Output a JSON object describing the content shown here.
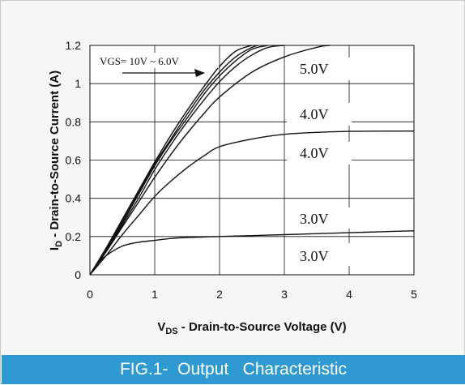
{
  "caption": "FIG.1-  Output   Characteristic",
  "colors": {
    "caption_bg": "#2f9ad2",
    "plot_bg": "#ffffff",
    "curve": "#111111",
    "grid": "#111111"
  },
  "chart_data": {
    "type": "line",
    "title": "",
    "xlabel_main": "V",
    "xlabel_sub": "DS",
    "xlabel_rest": " - Drain-to-Source Voltage (V)",
    "ylabel_main": "I",
    "ylabel_sub": "D",
    "ylabel_rest": " - Drain-to-Source Current (A)",
    "xlim": [
      0,
      5
    ],
    "ylim": [
      0,
      1.2
    ],
    "xticks": [
      "0",
      "1",
      "2",
      "3",
      "4",
      "5"
    ],
    "yticks": [
      "0",
      "0.2",
      "0.4",
      "0.6",
      "0.8",
      "1",
      "1.2"
    ],
    "grid": true,
    "annotations": {
      "vgs_range": "VGS= 10V ~ 6.0V",
      "labels": [
        "5.0V",
        "4.0V",
        "4.0V",
        "3.0V",
        "3.0V"
      ]
    },
    "series": [
      {
        "x": [
          0,
          0.25,
          0.5,
          0.75,
          1,
          1.25,
          1.5,
          1.75,
          2,
          2.25,
          2.5
        ],
        "y": [
          0,
          0.14,
          0.29,
          0.44,
          0.59,
          0.73,
          0.86,
          0.98,
          1.09,
          1.17,
          1.2
        ]
      },
      {
        "x": [
          0,
          0.25,
          0.5,
          0.75,
          1,
          1.25,
          1.5,
          1.75,
          2,
          2.25,
          2.5,
          2.6
        ],
        "y": [
          0,
          0.135,
          0.28,
          0.43,
          0.58,
          0.71,
          0.84,
          0.96,
          1.06,
          1.14,
          1.19,
          1.2
        ]
      },
      {
        "x": [
          0,
          0.25,
          0.5,
          0.75,
          1,
          1.25,
          1.5,
          1.75,
          2,
          2.25,
          2.5,
          2.75
        ],
        "y": [
          0,
          0.13,
          0.27,
          0.42,
          0.57,
          0.7,
          0.82,
          0.94,
          1.04,
          1.12,
          1.18,
          1.2
        ]
      },
      {
        "x": [
          0,
          0.25,
          0.5,
          0.75,
          1,
          1.25,
          1.5,
          1.75,
          2,
          2.25,
          2.5,
          2.75,
          3.0
        ],
        "y": [
          0,
          0.125,
          0.26,
          0.4,
          0.55,
          0.68,
          0.8,
          0.91,
          1.01,
          1.09,
          1.15,
          1.19,
          1.2
        ]
      },
      {
        "x": [
          0,
          0.25,
          0.5,
          0.75,
          1,
          1.25,
          1.5,
          1.75,
          2,
          2.5,
          3,
          3.5,
          3.7
        ],
        "y": [
          0,
          0.12,
          0.25,
          0.38,
          0.51,
          0.63,
          0.74,
          0.84,
          0.93,
          1.06,
          1.14,
          1.19,
          1.2
        ]
      },
      {
        "x": [
          0,
          0.25,
          0.5,
          0.75,
          1,
          1.25,
          1.5,
          1.75,
          2,
          2.5,
          3,
          3.5,
          4,
          5
        ],
        "y": [
          0,
          0.1,
          0.21,
          0.31,
          0.41,
          0.49,
          0.56,
          0.62,
          0.67,
          0.71,
          0.735,
          0.745,
          0.75,
          0.752
        ]
      },
      {
        "x": [
          0,
          0.1,
          0.25,
          0.5,
          0.75,
          1,
          1.25,
          1.5,
          2,
          2.5,
          3,
          3.5,
          4,
          4.5,
          5
        ],
        "y": [
          0,
          0.05,
          0.1,
          0.15,
          0.17,
          0.18,
          0.19,
          0.195,
          0.2,
          0.205,
          0.21,
          0.215,
          0.22,
          0.225,
          0.23
        ]
      }
    ]
  }
}
